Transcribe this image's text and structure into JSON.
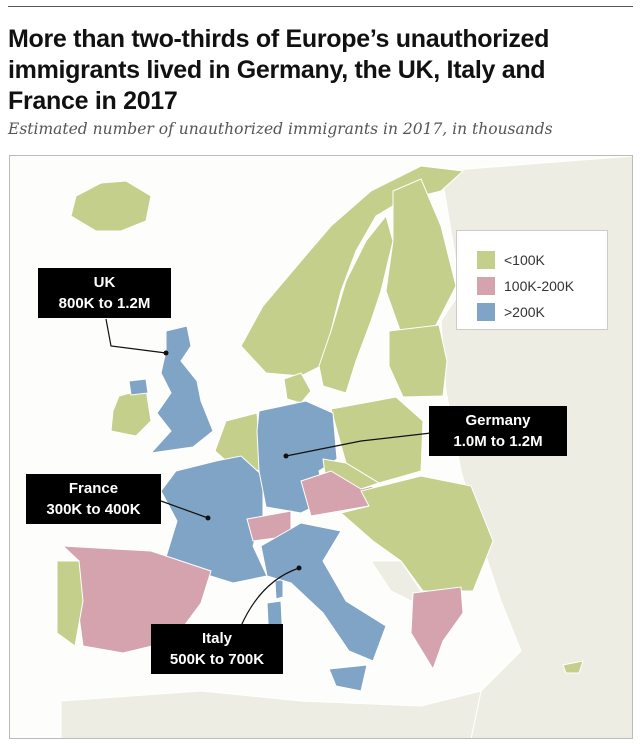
{
  "title": "More than two-thirds of Europe’s unauthorized immigrants lived in Germany, the UK, Italy and France in 2017",
  "subtitle": "Estimated number of unauthorized immigrants in 2017, in thousands",
  "colors": {
    "low": "#c3cf8a",
    "mid": "#d4a3ae",
    "high": "#80a4c5",
    "other_land": "#eeede3",
    "border": "#ffffff"
  },
  "legend": [
    {
      "label": "<100K",
      "color": "#c3cf8a"
    },
    {
      "label": "100K-200K",
      "color": "#d4a3ae"
    },
    {
      "label": ">200K",
      "color": "#80a4c5"
    }
  ],
  "callouts": {
    "uk": {
      "name": "UK",
      "range": "800K to 1.2M"
    },
    "germany": {
      "name": "Germany",
      "range": "1.0M to 1.2M"
    },
    "france": {
      "name": "France",
      "range": "300K to 400K"
    },
    "italy": {
      "name": "Italy",
      "range": "500K to 700K"
    }
  }
}
